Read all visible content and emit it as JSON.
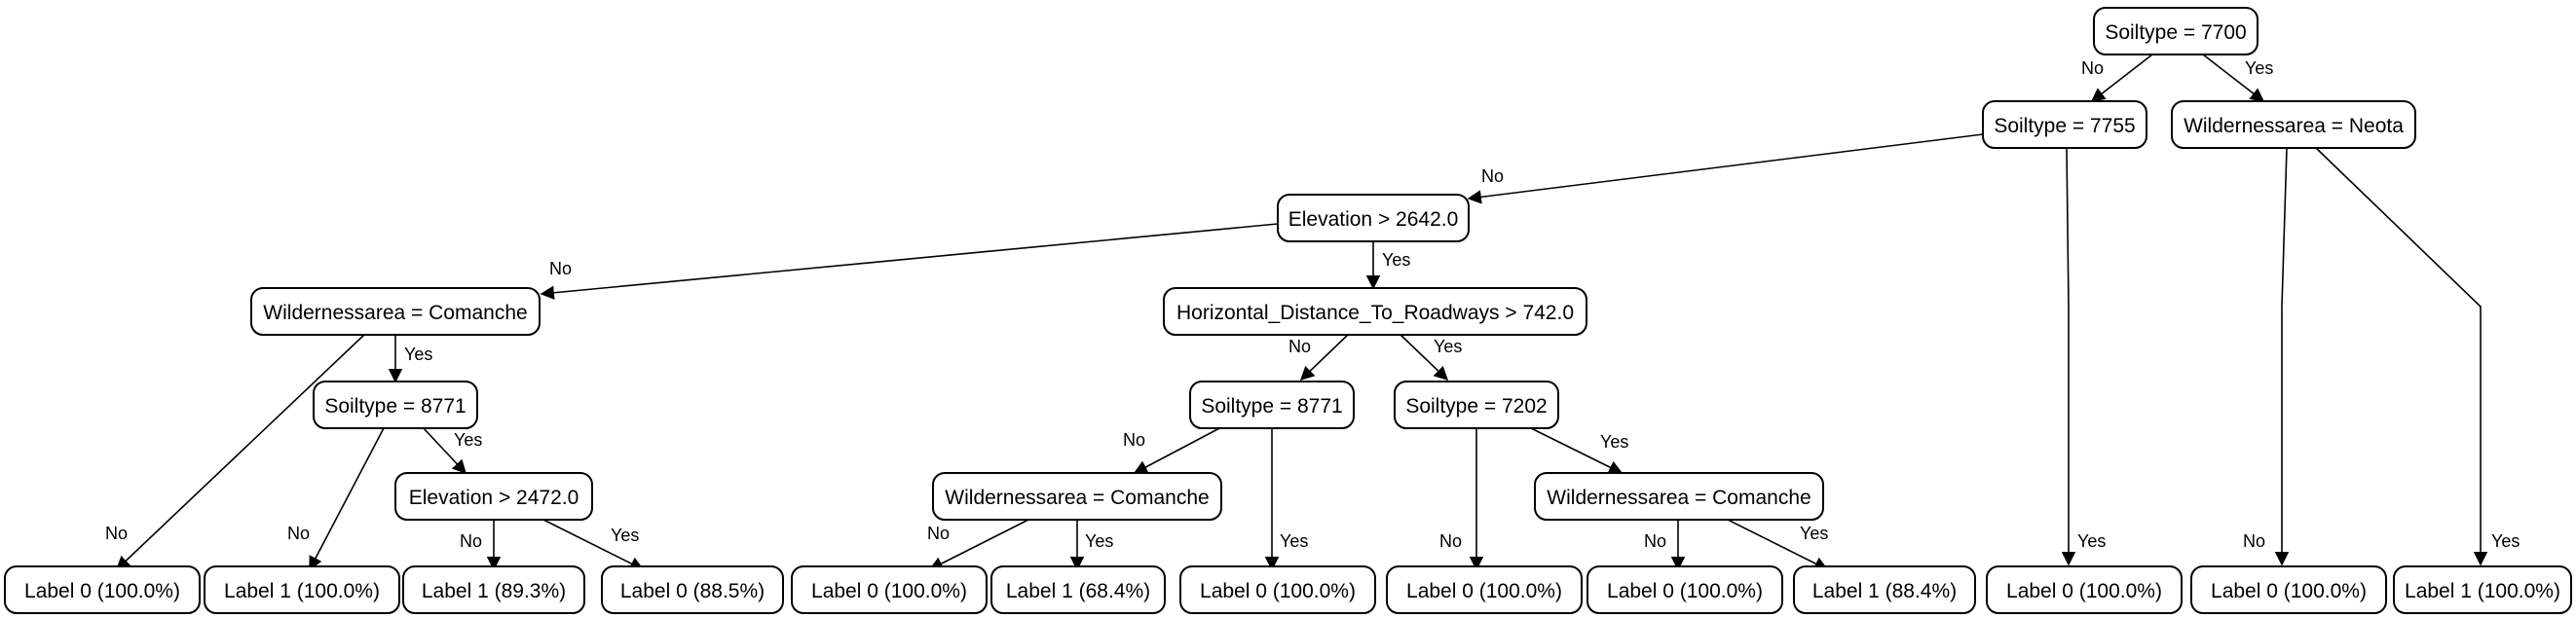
{
  "nodes": {
    "n_root": "Soiltype = 7700",
    "n_s7755": "Soiltype = 7755",
    "n_wneota": "Wildernessarea = Neota",
    "n_elev2642": "Elevation > 2642.0",
    "n_wcom1": "Wildernessarea = Comanche",
    "n_hdist": "Horizontal_Distance_To_Roadways > 742.0",
    "n_s8771a": "Soiltype = 8771",
    "n_elev2472": "Elevation > 2472.0",
    "n_s8771b": "Soiltype = 8771",
    "n_s7202": "Soiltype = 7202",
    "n_wcom2": "Wildernessarea = Comanche",
    "n_wcom3": "Wildernessarea = Comanche",
    "l1": "Label 0 (100.0%)",
    "l2": "Label 1 (100.0%)",
    "l3": "Label 1 (89.3%)",
    "l4": "Label 0 (88.5%)",
    "l5": "Label 0 (100.0%)",
    "l6": "Label 1 (68.4%)",
    "l7": "Label 0 (100.0%)",
    "l8": "Label 0 (100.0%)",
    "l9": "Label 0 (100.0%)",
    "l10": "Label 1 (88.4%)",
    "l11": "Label 0 (100.0%)",
    "l12": "Label 0 (100.0%)",
    "l13": "Label 1 (100.0%)"
  },
  "edge_labels": {
    "no": "No",
    "yes": "Yes"
  }
}
